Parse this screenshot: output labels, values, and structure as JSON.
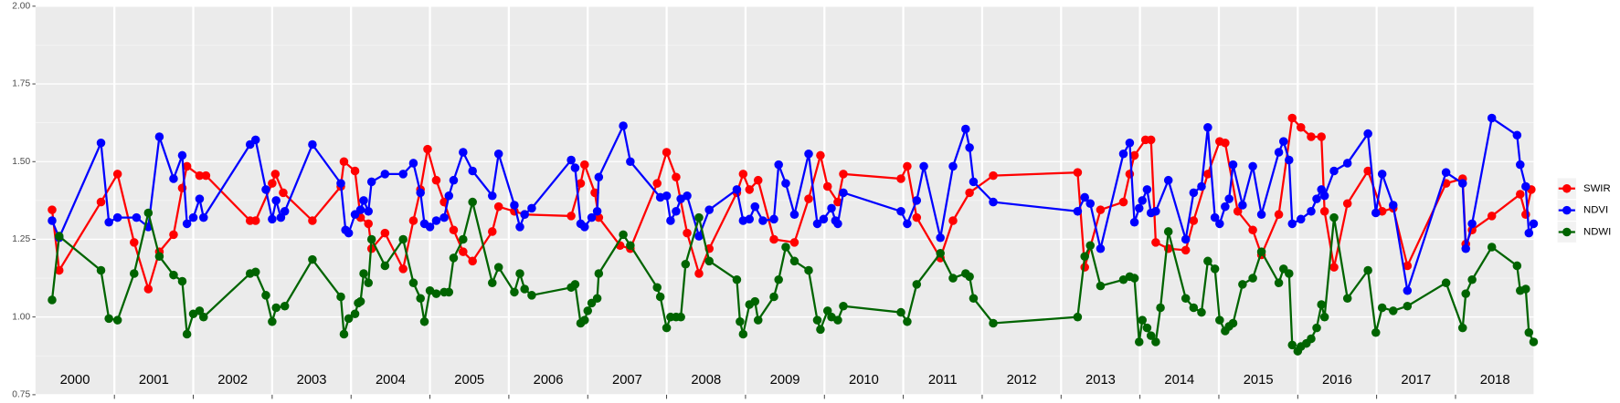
{
  "chart_data": {
    "type": "line",
    "xlim": [
      2000,
      2018.99
    ],
    "xticks": [
      2001,
      2002,
      2003,
      2004,
      2005,
      2006,
      2007,
      2008,
      2009,
      2010,
      2011,
      2012,
      2013,
      2014,
      2015,
      2016,
      2017,
      2018
    ],
    "year_labels": [
      "2000",
      "2001",
      "2002",
      "2003",
      "2004",
      "2005",
      "2006",
      "2007",
      "2008",
      "2009",
      "2010",
      "2011",
      "2012",
      "2013",
      "2014",
      "2015",
      "2016",
      "2017",
      "2018"
    ],
    "ylim": [
      0.75,
      2.0
    ],
    "yticks": [
      0.75,
      {
        "value": 1.0,
        "label": "1.00"
      },
      1.25,
      {
        "value": 1.5,
        "label": "1.50"
      },
      1.75,
      {
        "value": 2.0,
        "label": "2.00"
      }
    ],
    "grid": true,
    "legend": "right",
    "series": [
      {
        "name": "SWIR",
        "color": "#ff0000",
        "x": [
          2000.21,
          2000.3,
          2000.83,
          2001.04,
          2001.25,
          2001.43,
          2001.57,
          2001.75,
          2001.86,
          2001.92,
          2002.08,
          2002.16,
          2002.72,
          2002.79,
          2003.0,
          2003.04,
          2003.14,
          2003.51,
          2003.87,
          2003.91,
          2004.05,
          2004.12,
          2004.22,
          2004.26,
          2004.43,
          2004.66,
          2004.79,
          2004.88,
          2004.97,
          2005.08,
          2005.18,
          2005.3,
          2005.42,
          2005.54,
          2005.79,
          2005.87,
          2006.07,
          2006.2,
          2006.79,
          2006.91,
          2006.96,
          2007.09,
          2007.14,
          2007.41,
          2007.54,
          2007.88,
          2008.0,
          2008.12,
          2008.26,
          2008.41,
          2008.54,
          2008.89,
          2008.97,
          2009.05,
          2009.16,
          2009.36,
          2009.62,
          2009.8,
          2009.95,
          2010.04,
          2010.17,
          2010.24,
          2010.97,
          2011.05,
          2011.17,
          2011.47,
          2011.63,
          2011.84,
          2012.14,
          2013.21,
          2013.3,
          2013.5,
          2013.79,
          2013.87,
          2013.93,
          2014.07,
          2014.14,
          2014.2,
          2014.36,
          2014.58,
          2014.68,
          2014.86,
          2015.01,
          2015.08,
          2015.24,
          2015.43,
          2015.54,
          2015.76,
          2015.93,
          2016.04,
          2016.17,
          2016.3,
          2016.34,
          2016.46,
          2016.63,
          2016.89,
          2017.07,
          2017.21,
          2017.39,
          2017.88,
          2018.09,
          2018.13,
          2018.21,
          2018.46,
          2018.82,
          2018.89,
          2018.96
        ],
        "values": [
          1.345,
          1.15,
          1.37,
          1.46,
          1.24,
          1.09,
          1.21,
          1.265,
          1.415,
          1.485,
          1.455,
          1.455,
          1.31,
          1.31,
          1.43,
          1.46,
          1.4,
          1.31,
          1.42,
          1.5,
          1.47,
          1.32,
          1.3,
          1.22,
          1.27,
          1.155,
          1.31,
          1.41,
          1.54,
          1.44,
          1.37,
          1.28,
          1.21,
          1.18,
          1.275,
          1.355,
          1.34,
          1.33,
          1.325,
          1.43,
          1.49,
          1.4,
          1.32,
          1.23,
          1.22,
          1.43,
          1.53,
          1.45,
          1.27,
          1.14,
          1.22,
          1.4,
          1.46,
          1.41,
          1.44,
          1.25,
          1.24,
          1.38,
          1.52,
          1.42,
          1.37,
          1.46,
          1.445,
          1.485,
          1.32,
          1.19,
          1.31,
          1.4,
          1.455,
          1.465,
          1.16,
          1.345,
          1.37,
          1.46,
          1.52,
          1.57,
          1.57,
          1.24,
          1.22,
          1.215,
          1.31,
          1.46,
          1.565,
          1.56,
          1.34,
          1.28,
          1.2,
          1.33,
          1.64,
          1.61,
          1.58,
          1.58,
          1.34,
          1.16,
          1.365,
          1.47,
          1.34,
          1.35,
          1.165,
          1.43,
          1.445,
          1.235,
          1.28,
          1.325,
          1.395,
          1.33,
          1.41
        ]
      },
      {
        "name": "NDVI",
        "color": "#0000ff",
        "x": [
          2000.21,
          2000.3,
          2000.83,
          2000.93,
          2001.04,
          2001.28,
          2001.43,
          2001.57,
          2001.75,
          2001.86,
          2001.92,
          2002.0,
          2002.08,
          2002.13,
          2002.72,
          2002.79,
          2002.92,
          2003.0,
          2003.05,
          2003.11,
          2003.16,
          2003.51,
          2003.87,
          2003.93,
          2003.97,
          2004.05,
          2004.12,
          2004.16,
          2004.22,
          2004.26,
          2004.43,
          2004.66,
          2004.79,
          2004.88,
          2004.93,
          2005.0,
          2005.08,
          2005.18,
          2005.24,
          2005.3,
          2005.42,
          2005.54,
          2005.79,
          2005.87,
          2006.07,
          2006.14,
          2006.2,
          2006.29,
          2006.79,
          2006.84,
          2006.91,
          2006.96,
          2007.05,
          2007.12,
          2007.14,
          2007.45,
          2007.54,
          2007.92,
          2008.0,
          2008.05,
          2008.12,
          2008.18,
          2008.26,
          2008.41,
          2008.54,
          2008.89,
          2008.97,
          2009.05,
          2009.12,
          2009.22,
          2009.36,
          2009.42,
          2009.51,
          2009.62,
          2009.8,
          2009.91,
          2009.99,
          2010.09,
          2010.14,
          2010.17,
          2010.24,
          2010.97,
          2011.05,
          2011.17,
          2011.26,
          2011.47,
          2011.63,
          2011.79,
          2011.84,
          2011.89,
          2012.14,
          2013.21,
          2013.3,
          2013.37,
          2013.5,
          2013.79,
          2013.87,
          2013.93,
          2013.99,
          2014.03,
          2014.09,
          2014.14,
          2014.2,
          2014.36,
          2014.58,
          2014.68,
          2014.78,
          2014.86,
          2014.95,
          2015.01,
          2015.08,
          2015.13,
          2015.18,
          2015.3,
          2015.43,
          2015.54,
          2015.76,
          2015.82,
          2015.89,
          2015.93,
          2016.04,
          2016.17,
          2016.24,
          2016.3,
          2016.34,
          2016.46,
          2016.63,
          2016.89,
          2016.99,
          2017.07,
          2017.21,
          2017.39,
          2017.88,
          2018.09,
          2018.13,
          2018.21,
          2018.46,
          2018.78,
          2018.82,
          2018.89,
          2018.93,
          2018.99
        ],
        "values": [
          1.31,
          1.255,
          1.56,
          1.305,
          1.32,
          1.32,
          1.29,
          1.58,
          1.445,
          1.52,
          1.3,
          1.32,
          1.38,
          1.32,
          1.555,
          1.57,
          1.41,
          1.315,
          1.375,
          1.32,
          1.34,
          1.555,
          1.43,
          1.28,
          1.27,
          1.33,
          1.345,
          1.375,
          1.34,
          1.435,
          1.46,
          1.46,
          1.495,
          1.4,
          1.3,
          1.29,
          1.31,
          1.32,
          1.39,
          1.44,
          1.53,
          1.47,
          1.39,
          1.525,
          1.36,
          1.29,
          1.33,
          1.35,
          1.505,
          1.48,
          1.3,
          1.29,
          1.32,
          1.34,
          1.45,
          1.615,
          1.5,
          1.385,
          1.39,
          1.31,
          1.34,
          1.38,
          1.39,
          1.26,
          1.345,
          1.41,
          1.31,
          1.315,
          1.355,
          1.31,
          1.315,
          1.49,
          1.43,
          1.33,
          1.525,
          1.3,
          1.315,
          1.35,
          1.31,
          1.3,
          1.4,
          1.34,
          1.3,
          1.375,
          1.485,
          1.255,
          1.485,
          1.605,
          1.545,
          1.435,
          1.37,
          1.34,
          1.385,
          1.365,
          1.22,
          1.525,
          1.56,
          1.305,
          1.35,
          1.375,
          1.41,
          1.335,
          1.34,
          1.44,
          1.25,
          1.4,
          1.42,
          1.61,
          1.32,
          1.3,
          1.355,
          1.38,
          1.49,
          1.36,
          1.485,
          1.33,
          1.53,
          1.565,
          1.505,
          1.3,
          1.315,
          1.34,
          1.38,
          1.41,
          1.39,
          1.47,
          1.495,
          1.59,
          1.335,
          1.46,
          1.36,
          1.085,
          1.465,
          1.43,
          1.22,
          1.3,
          1.64,
          1.585,
          1.49,
          1.42,
          1.27,
          1.3
        ]
      },
      {
        "name": "NDWI",
        "color": "#006400",
        "x": [
          2000.21,
          2000.3,
          2000.83,
          2000.93,
          2001.04,
          2001.25,
          2001.43,
          2001.57,
          2001.75,
          2001.86,
          2001.92,
          2002.0,
          2002.08,
          2002.13,
          2002.72,
          2002.79,
          2002.92,
          2003.0,
          2003.05,
          2003.16,
          2003.51,
          2003.87,
          2003.91,
          2003.97,
          2004.05,
          2004.09,
          2004.12,
          2004.16,
          2004.22,
          2004.26,
          2004.43,
          2004.66,
          2004.79,
          2004.88,
          2004.93,
          2005.0,
          2005.08,
          2005.18,
          2005.24,
          2005.3,
          2005.42,
          2005.54,
          2005.79,
          2005.87,
          2006.07,
          2006.14,
          2006.2,
          2006.29,
          2006.79,
          2006.84,
          2006.91,
          2006.96,
          2007.0,
          2007.05,
          2007.12,
          2007.14,
          2007.45,
          2007.54,
          2007.88,
          2007.92,
          2008.0,
          2008.05,
          2008.12,
          2008.18,
          2008.24,
          2008.41,
          2008.54,
          2008.89,
          2008.93,
          2008.97,
          2009.05,
          2009.12,
          2009.16,
          2009.36,
          2009.42,
          2009.51,
          2009.62,
          2009.8,
          2009.91,
          2009.95,
          2010.04,
          2010.09,
          2010.17,
          2010.24,
          2010.97,
          2011.05,
          2011.17,
          2011.47,
          2011.63,
          2011.79,
          2011.84,
          2011.89,
          2012.14,
          2013.21,
          2013.3,
          2013.37,
          2013.5,
          2013.79,
          2013.87,
          2013.93,
          2013.99,
          2014.03,
          2014.09,
          2014.14,
          2014.2,
          2014.26,
          2014.36,
          2014.58,
          2014.68,
          2014.78,
          2014.86,
          2014.95,
          2015.01,
          2015.08,
          2015.13,
          2015.18,
          2015.3,
          2015.43,
          2015.54,
          2015.76,
          2015.82,
          2015.89,
          2015.93,
          2016.0,
          2016.04,
          2016.11,
          2016.17,
          2016.24,
          2016.3,
          2016.34,
          2016.46,
          2016.63,
          2016.89,
          2016.99,
          2017.07,
          2017.21,
          2017.39,
          2017.88,
          2018.09,
          2018.13,
          2018.21,
          2018.46,
          2018.78,
          2018.82,
          2018.89,
          2018.93,
          2018.99
        ],
        "values": [
          1.055,
          1.26,
          1.15,
          0.995,
          0.99,
          1.14,
          1.335,
          1.195,
          1.135,
          1.115,
          0.945,
          1.01,
          1.02,
          1.0,
          1.14,
          1.145,
          1.07,
          0.985,
          1.03,
          1.035,
          1.185,
          1.065,
          0.945,
          0.995,
          1.01,
          1.045,
          1.05,
          1.14,
          1.11,
          1.25,
          1.165,
          1.25,
          1.11,
          1.06,
          0.985,
          1.085,
          1.075,
          1.08,
          1.08,
          1.19,
          1.25,
          1.37,
          1.11,
          1.16,
          1.08,
          1.14,
          1.09,
          1.07,
          1.095,
          1.105,
          0.98,
          0.99,
          1.02,
          1.045,
          1.06,
          1.14,
          1.265,
          1.23,
          1.095,
          1.065,
          0.965,
          1.0,
          1.0,
          1.0,
          1.17,
          1.32,
          1.18,
          1.12,
          0.985,
          0.945,
          1.04,
          1.05,
          0.99,
          1.065,
          1.12,
          1.225,
          1.18,
          1.15,
          0.99,
          0.96,
          1.02,
          1.0,
          0.99,
          1.035,
          1.015,
          0.985,
          1.105,
          1.205,
          1.125,
          1.14,
          1.13,
          1.06,
          0.98,
          1.0,
          1.195,
          1.23,
          1.1,
          1.12,
          1.13,
          1.125,
          0.92,
          0.99,
          0.965,
          0.94,
          0.92,
          1.03,
          1.275,
          1.06,
          1.03,
          1.015,
          1.18,
          1.155,
          0.99,
          0.955,
          0.97,
          0.98,
          1.105,
          1.125,
          1.21,
          1.11,
          1.155,
          1.14,
          0.91,
          0.89,
          0.905,
          0.915,
          0.93,
          0.965,
          1.04,
          1.0,
          1.32,
          1.06,
          1.15,
          0.95,
          1.03,
          1.02,
          1.035,
          1.11,
          0.965,
          1.075,
          1.12,
          1.225,
          1.165,
          1.085,
          1.09,
          0.95,
          0.92
        ]
      }
    ]
  }
}
